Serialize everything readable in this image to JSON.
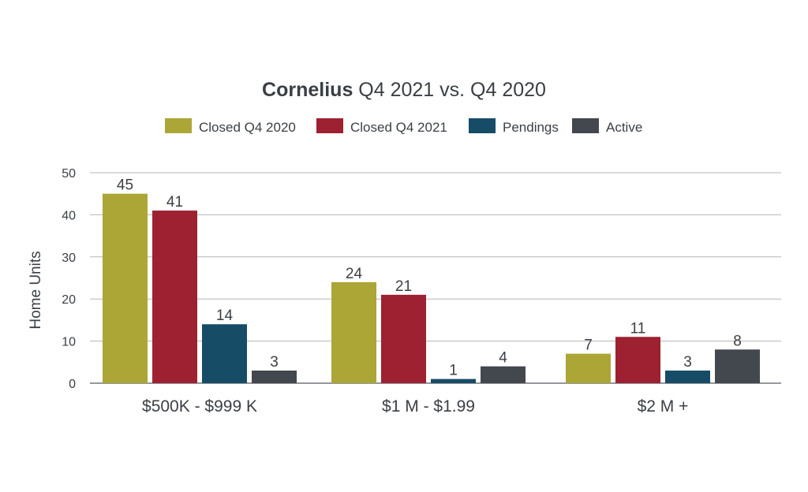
{
  "chart_data": {
    "type": "bar",
    "title_bold": "Cornelius",
    "title_rest": " Q4 2021 vs. Q4 2020",
    "xlabel": "",
    "ylabel": "Home Units",
    "ylim": [
      0,
      50
    ],
    "yticks": [
      0,
      10,
      20,
      30,
      40,
      50
    ],
    "grid": true,
    "legend_position": "top-center",
    "categories": [
      "$500K - $999 K",
      "$1 M - $1.99",
      "$2 M +"
    ],
    "series": [
      {
        "name": "Closed Q4 2020",
        "color": "#aca637",
        "values": [
          45,
          24,
          7
        ]
      },
      {
        "name": "Closed Q4 2021",
        "color": "#9d2131",
        "values": [
          41,
          21,
          11
        ]
      },
      {
        "name": "Pendings",
        "color": "#174c67",
        "values": [
          14,
          1,
          3
        ]
      },
      {
        "name": "Active",
        "color": "#43474e",
        "values": [
          3,
          4,
          8
        ]
      }
    ]
  }
}
